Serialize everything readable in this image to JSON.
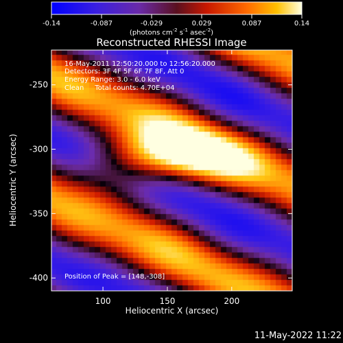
{
  "chart_data": {
    "type": "heatmap",
    "title": "Reconstructed RHESSI Image",
    "xlabel": "Heliocentric X (arcsec)",
    "ylabel": "Heliocentric Y (arcsec)",
    "xlim": [
      60,
      247
    ],
    "ylim": [
      -410,
      -223
    ],
    "xticks": [
      100,
      150,
      200
    ],
    "yticks": [
      -250,
      -300,
      -350,
      -400
    ],
    "annotations": [
      "16-May-2011 12:50:20.000 to 12:56:20.000",
      "Detectors: 3F 4F 5F 6F 7F 8F, Att 0",
      "Energy Range: 3.0 - 6.0 keV",
      "Clean     Total counts: 4.70E+04"
    ],
    "peak_label": "Position of Peak = [148,-308]",
    "peak": [
      148,
      -308
    ],
    "colorbar": {
      "range": [
        -0.14,
        0.14
      ],
      "ticks": [
        "-0.14",
        "-0.087",
        "-0.029",
        "0.029",
        "0.087",
        "0.14"
      ],
      "unit_label": "(photons cm",
      "unit_exp1": "-2",
      "unit_mid": " s",
      "unit_exp2": "-1",
      "unit_end": " asec",
      "unit_exp3": "-2",
      "unit_close": ")"
    },
    "grid": false
  },
  "footer_date": "11-May-2022 11:22"
}
